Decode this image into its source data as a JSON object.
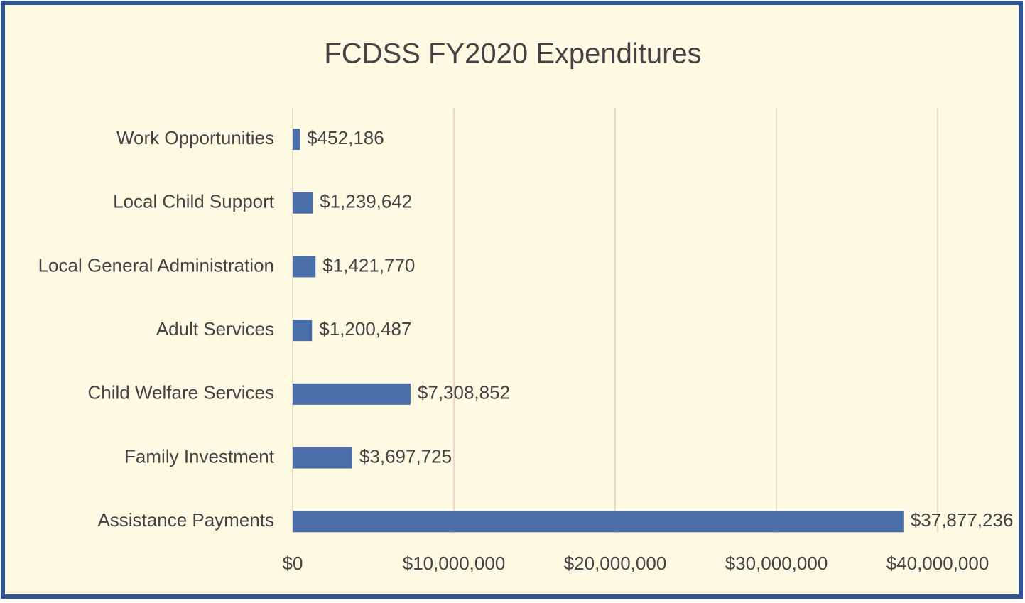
{
  "chart_data": {
    "type": "bar",
    "title": "FCDSS FY2020 Expenditures",
    "categories": [
      "Work Opportunities",
      "Local Child Support",
      "Local General Administration",
      "Adult Services",
      "Child Welfare Services",
      "Family Investment",
      "Assistance Payments"
    ],
    "values": [
      452186,
      1239642,
      1421770,
      1200487,
      7308852,
      3697725,
      37877236
    ],
    "value_labels": [
      "$452,186",
      "$1,239,642",
      "$1,421,770",
      "$1,200,487",
      "$7,308,852",
      "$3,697,725",
      "$37,877,236"
    ],
    "color": "#4a6ea9",
    "xlim": [
      0,
      40000000
    ],
    "xticks": [
      {
        "value": 0,
        "label": "$0"
      },
      {
        "value": 10000000,
        "label": "$10,000,000"
      },
      {
        "value": 20000000,
        "label": "$20,000,000"
      },
      {
        "value": 30000000,
        "label": "$30,000,000"
      },
      {
        "value": 40000000,
        "label": "$40,000,000"
      }
    ],
    "grid": true
  }
}
